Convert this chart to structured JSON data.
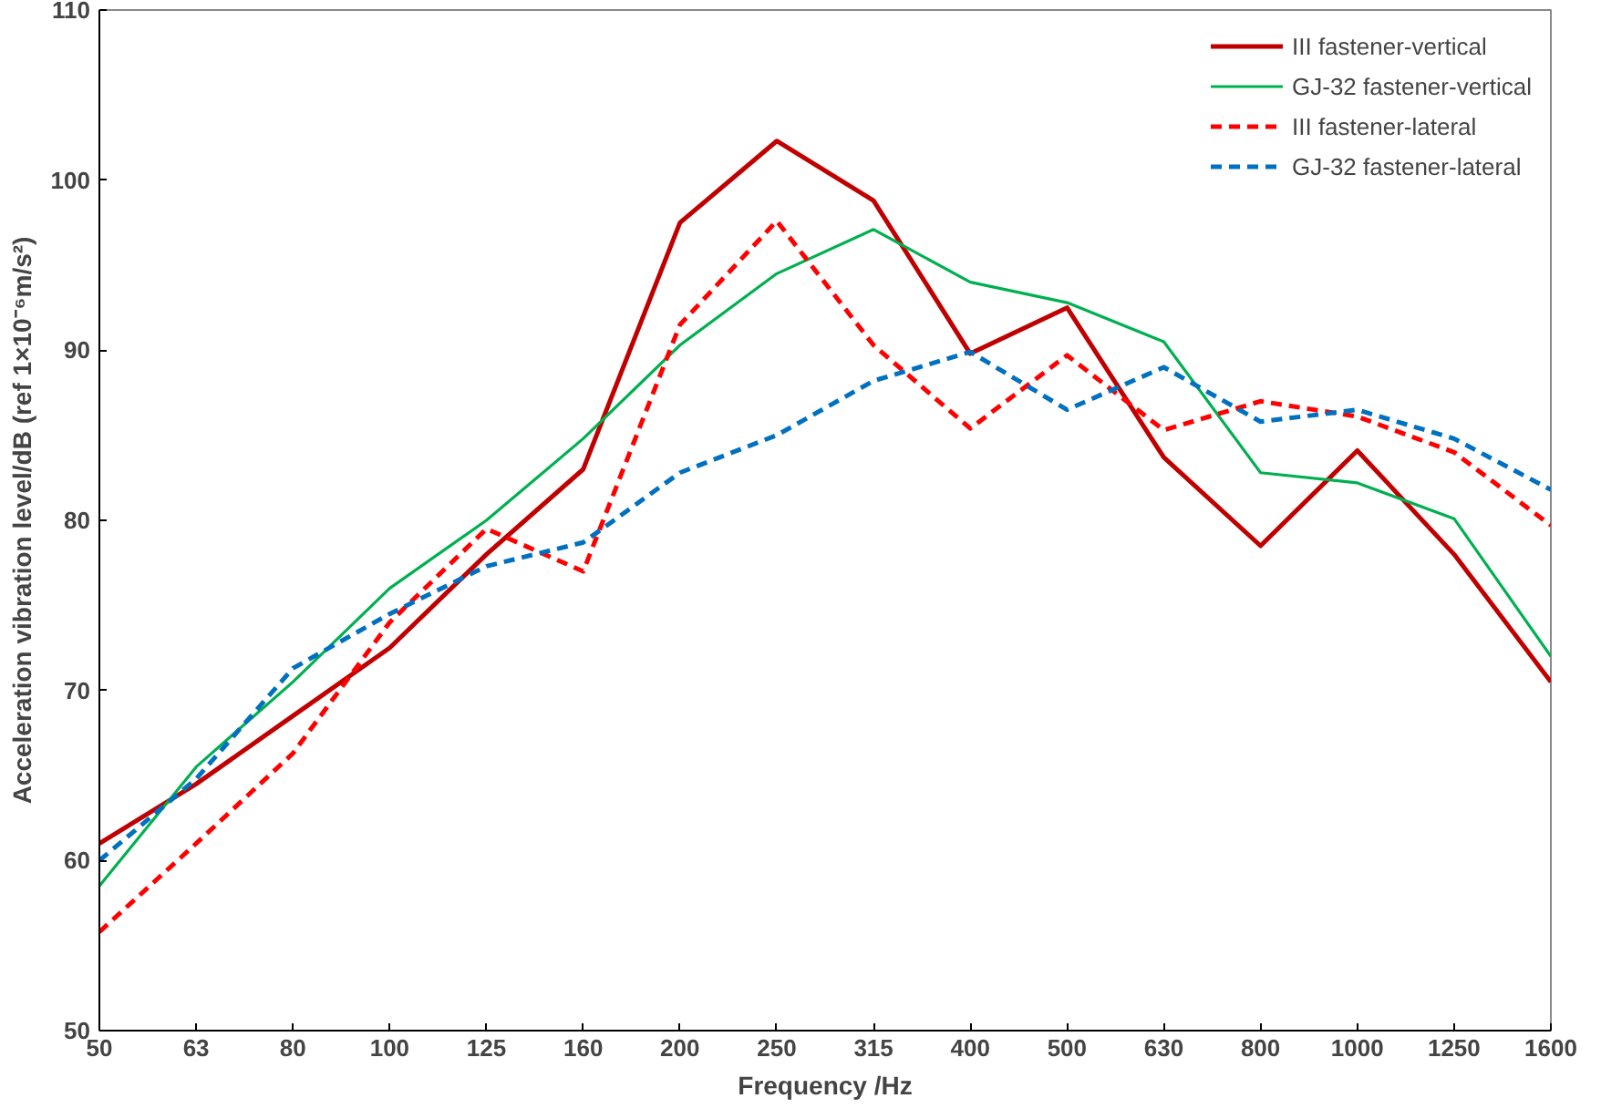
{
  "chart_data": {
    "type": "line",
    "xlabel": "Frequency /Hz",
    "ylabel": "Acceleration vibration level/dB (ref 1×10⁻⁶m/s²)",
    "categories": [
      "50",
      "63",
      "80",
      "100",
      "125",
      "160",
      "200",
      "250",
      "315",
      "400",
      "500",
      "630",
      "800",
      "1000",
      "1250",
      "1600"
    ],
    "ylim": [
      50,
      110
    ],
    "yticks": [
      50,
      60,
      70,
      80,
      90,
      100,
      110
    ],
    "grid": false,
    "legend": "top right",
    "marker": "none",
    "series": [
      {
        "name": "III fastener-vertical",
        "color": "#c00000",
        "line_style": "solid",
        "values": [
          61,
          64.5,
          68.5,
          72.5,
          78,
          83,
          97.5,
          102.3,
          98.8,
          89.8,
          92.5,
          83.7,
          78.5,
          84.1,
          78,
          70.5
        ]
      },
      {
        "name": "GJ-32 fastener-vertical",
        "color": "#00b050",
        "line_style": "solid",
        "values": [
          58.5,
          65.5,
          70.5,
          76,
          80,
          84.8,
          90.3,
          94.5,
          97.1,
          94,
          92.8,
          90.5,
          82.8,
          82.2,
          80.1,
          72
        ]
      },
      {
        "name": "III fastener-lateral",
        "color": "#ff0000",
        "line_style": "dashed",
        "values": [
          55.8,
          61,
          66.3,
          74,
          79.5,
          77,
          91.5,
          97.6,
          90.3,
          85.4,
          89.7,
          85.3,
          87,
          86.1,
          84,
          79.7
        ]
      },
      {
        "name": "GJ-32 fastener-lateral",
        "color": "#0070c0",
        "line_style": "dashed",
        "values": [
          60,
          64.8,
          71.3,
          74.5,
          77.3,
          78.7,
          82.8,
          85,
          88.2,
          89.9,
          86.5,
          89,
          85.8,
          86.5,
          84.8,
          81.8
        ]
      }
    ]
  }
}
